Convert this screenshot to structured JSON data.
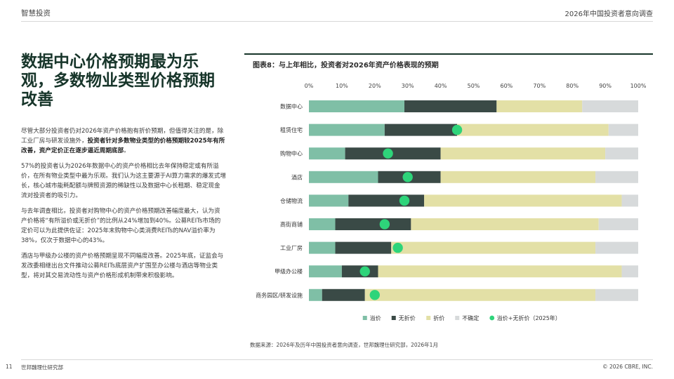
{
  "header": {
    "left": "智慧投资",
    "right": "2026年中国投资者意向调查"
  },
  "headline": "数据中心价格预期最为乐观，多数物业类型价格预期改善",
  "body": {
    "p1_a": "尽管大部分投资者仍对2026年资产价格抱有折价预期，但值得关注的是，除工业厂房与研发设施外，",
    "p1_b": "投资者针对多数物业类型的价格预期较2025年有所改善，资产定价正在逐步逼近周期底部",
    "p1_c": "。",
    "p2": "57%的投资者认为2026年数据中心的资产价格相比去年保持稳定或有所溢价，在所有物业类型中最为乐观。我们认为这主要源于AI算力需求的爆发式增长，核心城市能耗配额与牌照资源的稀缺性以及数据中心长租期、稳定现金流对投资者的吸引力。",
    "p3": "与去年调查相比，投资者对购物中心的资产价格预期改善幅度最大，认为资产价格将“有所溢价或无折价”的比例从24%增加到40%。公募REITs市场的定价可以为此提供佐证：2025年末购物中心类消费REITs的NAV溢价率为38%，仅次于数据中心的43%。",
    "p4": "酒店与甲级办公楼的资产价格预期呈现不同幅度改善。2025年底，证监会与发改委相继出台文件推动公募REITs底层资产扩围至办公楼与酒店等物业类型，将对其交易流动性与资产价格形成机制带来积极影响。"
  },
  "chart_title": "图表8：与上年相比，投资者对2026年资产价格表现的预期",
  "chart_data": {
    "type": "bar",
    "orientation": "horizontal",
    "stacked": true,
    "title": "图表8：与上年相比，投资者对2026年资产价格表现的预期",
    "categories": [
      "数据中心",
      "租赁住宅",
      "购物中心",
      "酒店",
      "仓储物流",
      "高街商铺",
      "工业厂房",
      "甲级办公楼",
      "商务园区/研发设施"
    ],
    "xlim": [
      0,
      100
    ],
    "xticks": [
      "0%",
      "10%",
      "20%",
      "30%",
      "40%",
      "50%",
      "60%",
      "70%",
      "80%",
      "90%",
      "100%"
    ],
    "series": [
      {
        "name": "溢价",
        "color": "#7fbfa6",
        "values": [
          29,
          23,
          11,
          21,
          12,
          8,
          8,
          10,
          4
        ]
      },
      {
        "name": "无折价",
        "color": "#3a4a46",
        "values": [
          28,
          22,
          29,
          19,
          23,
          23,
          17,
          11,
          13
        ]
      },
      {
        "name": "折价",
        "color": "#e3e0a6",
        "values": [
          26,
          46,
          50,
          47,
          60,
          57,
          62,
          74,
          70
        ]
      },
      {
        "name": "不确定",
        "color": "#d7dadb",
        "values": [
          17,
          9,
          10,
          13,
          5,
          12,
          13,
          5,
          13
        ]
      }
    ],
    "markers": {
      "name": "溢价+无折价（2025年）",
      "color": "#2ed47a",
      "values": [
        null,
        45,
        24,
        30,
        29,
        23,
        27,
        17,
        20
      ]
    }
  },
  "source": "数据来源：2026年及历年中国投资者意向调查，世邦魏理仕研究部，2026年1月",
  "footer": {
    "page": "11",
    "dept": "世邦魏理仕研究部",
    "copyright": "© 2026 CBRE, INC."
  }
}
